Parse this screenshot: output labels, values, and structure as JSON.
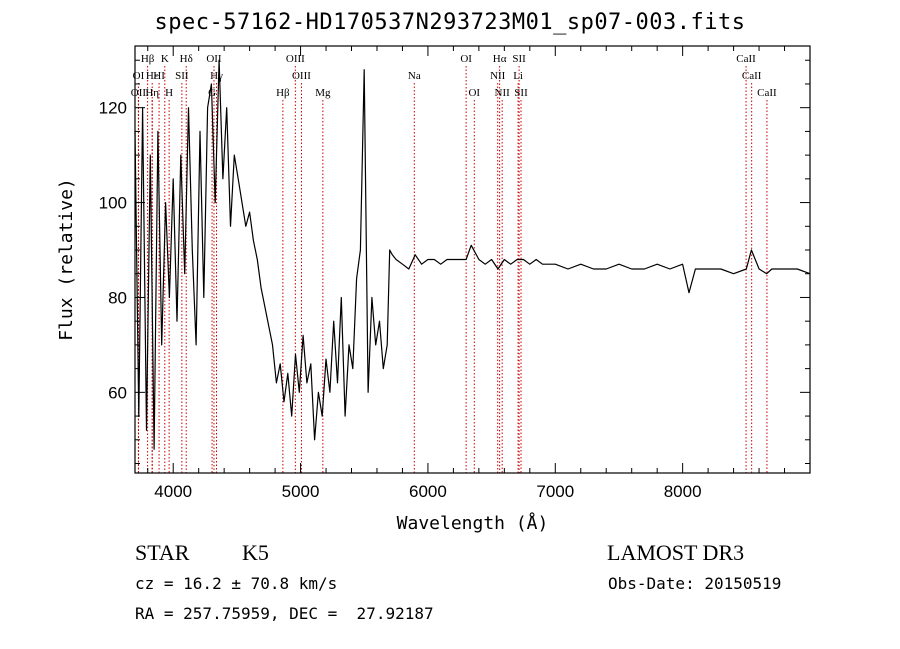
{
  "chart_data": {
    "type": "line",
    "title": "spec-57162-HD170537N293723M01_sp07-003.fits",
    "xlabel": "Wavelength (Å)",
    "ylabel": "Flux (relative)",
    "xlim": [
      3700,
      9000
    ],
    "ylim": [
      43,
      133
    ],
    "xticks": [
      4000,
      5000,
      6000,
      7000,
      8000
    ],
    "yticks": [
      60,
      80,
      100,
      120
    ],
    "line_color": "#000000",
    "marker_color": "#cc0000",
    "series": [
      {
        "x": [
          3700,
          3730,
          3760,
          3790,
          3820,
          3850,
          3880,
          3910,
          3940,
          3970,
          4000,
          4030,
          4060,
          4090,
          4120,
          4150,
          4180,
          4210,
          4240,
          4270,
          4300,
          4330,
          4360,
          4390,
          4420,
          4450,
          4480,
          4510,
          4540,
          4570,
          4600,
          4630,
          4660,
          4690,
          4720,
          4750,
          4780,
          4810,
          4840,
          4870,
          4900,
          4930,
          4960,
          4990,
          5020,
          5050,
          5080,
          5110,
          5140,
          5170,
          5200,
          5230,
          5260,
          5290,
          5320,
          5350,
          5380,
          5410,
          5440,
          5470,
          5500,
          5530,
          5560,
          5590,
          5620,
          5650,
          5680,
          5700,
          5720,
          5750,
          5800,
          5850,
          5900,
          5950,
          6000,
          6050,
          6100,
          6150,
          6200,
          6250,
          6300,
          6340,
          6400,
          6450,
          6500,
          6550,
          6600,
          6650,
          6700,
          6750,
          6800,
          6850,
          6900,
          6950,
          7000,
          7100,
          7200,
          7300,
          7400,
          7500,
          7600,
          7700,
          7800,
          7900,
          8000,
          8050,
          8100,
          8200,
          8300,
          8400,
          8500,
          8540,
          8600,
          8660,
          8700,
          8800,
          8900,
          9000
        ],
        "y": [
          115,
          55,
          120,
          52,
          110,
          48,
          115,
          70,
          100,
          80,
          105,
          75,
          110,
          85,
          120,
          90,
          70,
          115,
          80,
          120,
          125,
          100,
          130,
          105,
          120,
          95,
          110,
          105,
          100,
          95,
          98,
          92,
          88,
          82,
          78,
          74,
          70,
          62,
          66,
          58,
          64,
          55,
          68,
          60,
          72,
          62,
          66,
          50,
          60,
          55,
          67,
          60,
          75,
          62,
          80,
          55,
          70,
          65,
          84,
          90,
          128,
          60,
          80,
          70,
          75,
          65,
          70,
          90,
          89,
          88,
          87,
          86,
          89,
          87,
          88,
          88,
          87,
          88,
          88,
          88,
          88,
          91,
          88,
          87,
          88,
          86,
          88,
          87,
          88,
          88,
          87,
          88,
          87,
          87,
          87,
          86,
          87,
          86,
          86,
          87,
          86,
          86,
          87,
          86,
          87,
          81,
          86,
          86,
          86,
          85,
          86,
          90,
          86,
          85,
          86,
          86,
          86,
          85
        ]
      }
    ],
    "line_markers": [
      {
        "label": "Hβ",
        "x": 3799,
        "row": 0
      },
      {
        "label": "K",
        "x": 3934,
        "row": 0
      },
      {
        "label": "Hδ",
        "x": 4102,
        "row": 0
      },
      {
        "label": "OII",
        "x": 4320,
        "row": 0
      },
      {
        "label": "OIII",
        "x": 4959,
        "row": 0
      },
      {
        "label": "OI",
        "x": 6300,
        "row": 0
      },
      {
        "label": "Hα",
        "x": 6563,
        "row": 0
      },
      {
        "label": "SII",
        "x": 6716,
        "row": 0
      },
      {
        "label": "CaII",
        "x": 8498,
        "row": 0
      },
      {
        "label": "OI",
        "x": 3727,
        "row": 1
      },
      {
        "label": "Hε",
        "x": 3835,
        "row": 1
      },
      {
        "label": "HI",
        "x": 3889,
        "row": 1
      },
      {
        "label": "SII",
        "x": 4068,
        "row": 1
      },
      {
        "label": "Hγ",
        "x": 4340,
        "row": 1
      },
      {
        "label": "OIII",
        "x": 5007,
        "row": 1
      },
      {
        "label": "Na",
        "x": 5893,
        "row": 1
      },
      {
        "label": "NII",
        "x": 6548,
        "row": 1
      },
      {
        "label": "Li",
        "x": 6708,
        "row": 1
      },
      {
        "label": "CaII",
        "x": 8542,
        "row": 1
      },
      {
        "label": "OII",
        "x": 3727,
        "row": 2
      },
      {
        "label": "Hη",
        "x": 3835,
        "row": 2
      },
      {
        "label": "H",
        "x": 3968,
        "row": 2
      },
      {
        "label": "G",
        "x": 4305,
        "row": 2
      },
      {
        "label": "Hβ",
        "x": 4861,
        "row": 2
      },
      {
        "label": "Mg",
        "x": 5175,
        "row": 2
      },
      {
        "label": "OI",
        "x": 6364,
        "row": 2
      },
      {
        "label": "NII",
        "x": 6583,
        "row": 2
      },
      {
        "label": "SII",
        "x": 6731,
        "row": 2
      },
      {
        "label": "CaII",
        "x": 8662,
        "row": 2
      }
    ]
  },
  "info": {
    "object_type": "STAR",
    "subclass": "K5",
    "survey": "LAMOST DR3",
    "redshift": "cz = 16.2 ± 70.8 km/s",
    "obs_date": "Obs-Date: 20150519",
    "coords": "RA = 257.75959, DEC =  27.92187"
  }
}
